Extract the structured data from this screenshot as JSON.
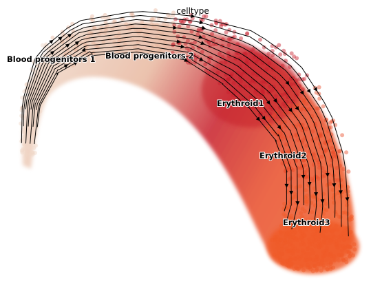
{
  "chart_data": {
    "type": "scatter",
    "title": "celltype",
    "xlabel": "",
    "ylabel": "",
    "grid": false,
    "axes_visible": false,
    "overlay": "streamlines",
    "legend": "on data",
    "categories": [
      {
        "name": "Blood progenitors 1",
        "color": "#f0d8c8"
      },
      {
        "name": "Blood progenitors 2",
        "color": "#e8b8a0"
      },
      {
        "name": "Erythroid1",
        "color": "#c8202c"
      },
      {
        "name": "Erythroid2",
        "color": "#e84e2a"
      },
      {
        "name": "Erythroid3",
        "color": "#f05a28"
      }
    ]
  }
}
